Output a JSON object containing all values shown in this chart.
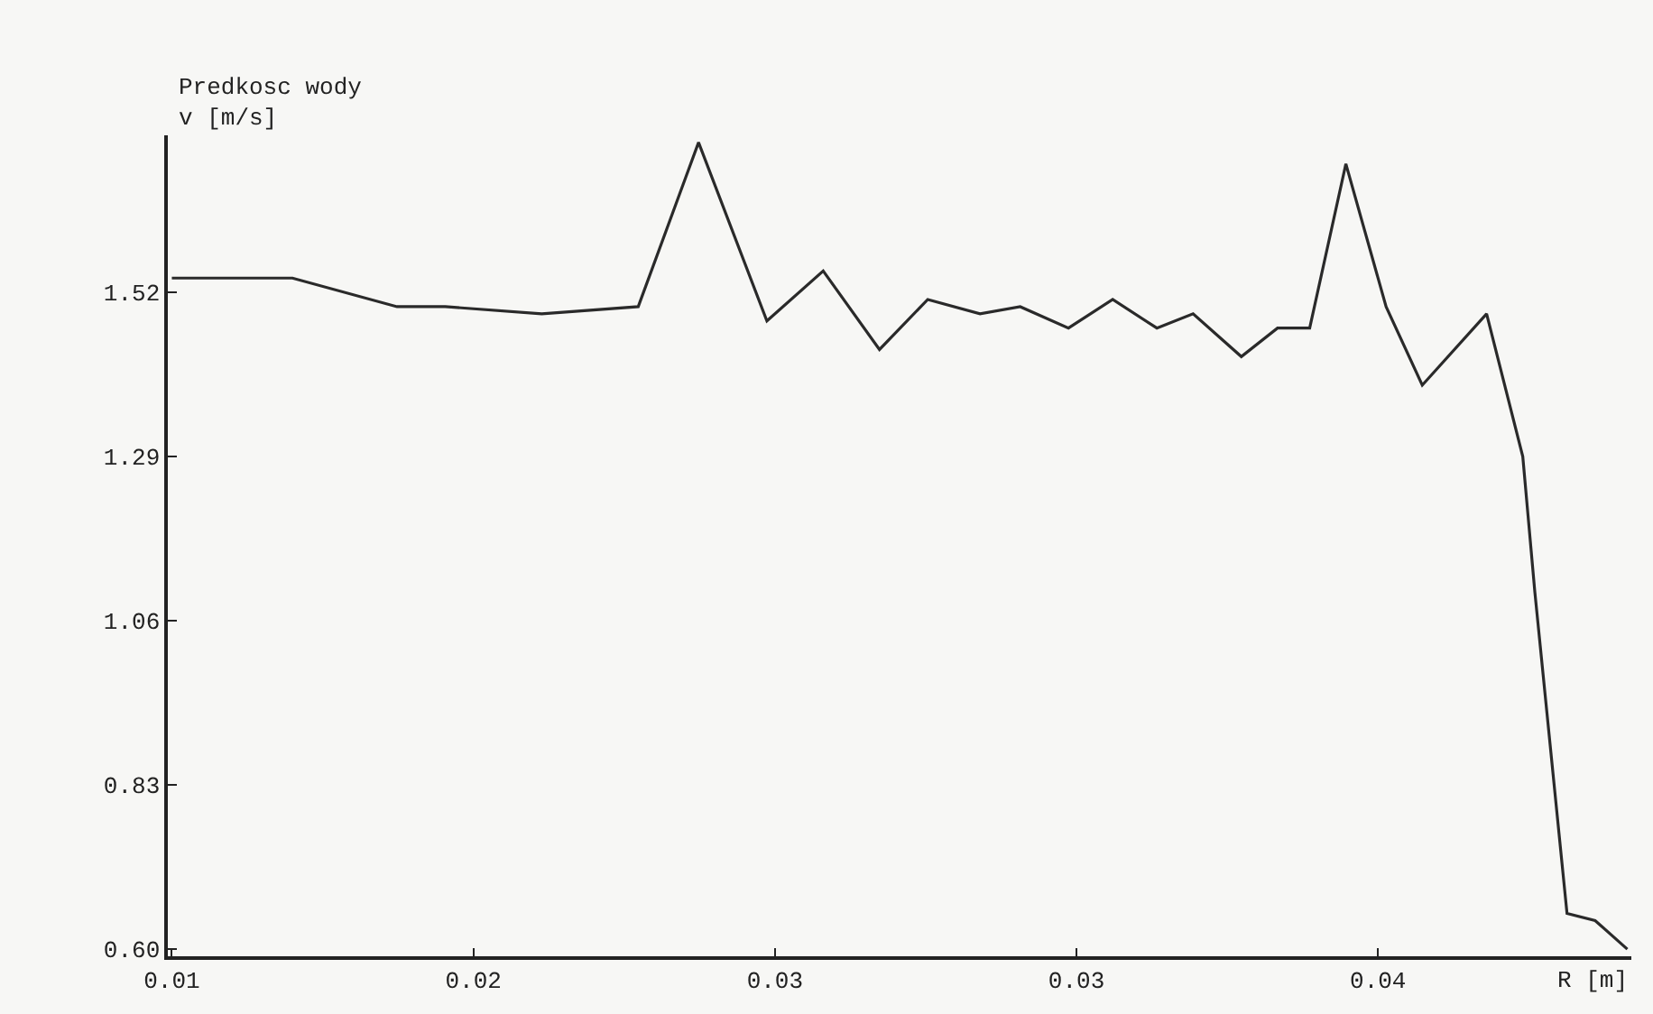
{
  "chart_data": {
    "type": "line",
    "ylabel": "Predkosc wody\nv [m/s]",
    "xlabel": "R [m]",
    "x": [
      0.01,
      0.013,
      0.0156,
      0.0168,
      0.0192,
      0.0216,
      0.0231,
      0.0248,
      0.0262,
      0.0276,
      0.0288,
      0.0301,
      0.0311,
      0.0323,
      0.0334,
      0.0345,
      0.0354,
      0.0366,
      0.0375,
      0.0383,
      0.0392,
      0.0402,
      0.0411,
      0.0427,
      0.0436,
      0.0439,
      0.0447,
      0.0454,
      0.0462
    ],
    "series": [
      {
        "color": "#2a2a2a",
        "values": [
          1.54,
          1.54,
          1.5,
          1.5,
          1.49,
          1.5,
          1.73,
          1.48,
          1.55,
          1.44,
          1.51,
          1.49,
          1.5,
          1.47,
          1.51,
          1.47,
          1.49,
          1.43,
          1.47,
          1.47,
          1.7,
          1.5,
          1.39,
          1.49,
          1.29,
          1.1,
          0.65,
          0.64,
          0.6
        ]
      }
    ],
    "xlim": [
      0.0099,
      0.0463
    ],
    "xticks": [
      {
        "value": 0.01,
        "label": "0.01"
      },
      {
        "value": 0.0175,
        "label": "0.02"
      },
      {
        "value": 0.025,
        "label": "0.03"
      },
      {
        "value": 0.0325,
        "label": "0.03"
      },
      {
        "value": 0.04,
        "label": "0.04"
      }
    ],
    "ylim": [
      0.59,
      1.74
    ],
    "yticks": [
      {
        "value": 0.6,
        "label": "0.60"
      },
      0.83,
      1.06,
      1.29,
      1.52
    ],
    "grid": false,
    "marker": "none",
    "line_style": "solid"
  }
}
